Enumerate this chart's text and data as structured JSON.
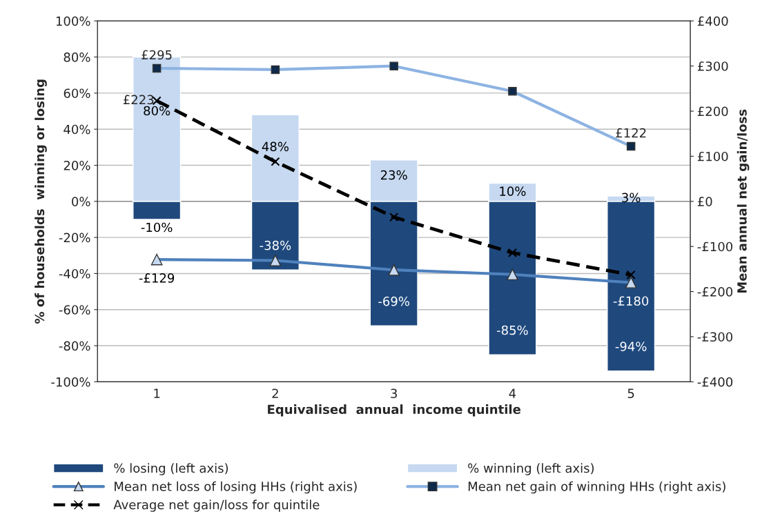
{
  "chart_data": {
    "type": "bar",
    "xlabel": "Equivalised  annual  income quintile",
    "ylabel": "% of households  winning or losing",
    "y2label": "Mean annual net gain/loss",
    "categories": [
      "1",
      "2",
      "3",
      "4",
      "5"
    ],
    "stacked": true,
    "data_labels": true,
    "grid": "y",
    "legend": "bottom",
    "series": [
      {
        "name": "% losing (left axis)",
        "color": "#1f497d",
        "values": [
          -10,
          -38,
          -69,
          -85,
          -94
        ],
        "value_labels": [
          "-10%",
          "-38%",
          "-69%",
          "-85%",
          "-94%"
        ]
      },
      {
        "name": "% winning (left axis)",
        "color": "#c6d9f1",
        "values": [
          80,
          48,
          23,
          10,
          3
        ],
        "value_labels": [
          "80%",
          "48%",
          "23%",
          "10%",
          "3%"
        ]
      },
      {
        "name": "Mean net loss of losing HHs (right axis)",
        "type": "line",
        "axis": "y2",
        "color": "#4f81bd",
        "marker": "triangle",
        "line_style": "solid",
        "values": [
          -129,
          -131,
          -152,
          -162,
          -180
        ],
        "value_labels": [
          "-£129",
          null,
          null,
          null,
          "-£180"
        ]
      },
      {
        "name": "Mean net gain of winning HHs (right axis)",
        "type": "line",
        "axis": "y2",
        "color": "#8db3e2",
        "marker": "square",
        "line_style": "solid",
        "values": [
          295,
          292,
          300,
          244,
          122
        ],
        "value_labels": [
          "£295",
          null,
          null,
          null,
          "£122"
        ]
      },
      {
        "name": "Average net gain/loss for quintile",
        "type": "line",
        "axis": "y2",
        "color": "#000000",
        "marker": "cross",
        "line_style": "dashed",
        "values": [
          223,
          88,
          -35,
          -114,
          -163
        ],
        "value_labels": [
          "£223",
          null,
          null,
          null,
          null
        ]
      }
    ],
    "ylim": [
      -100,
      100
    ],
    "yticks": [
      {
        "value": -100,
        "label": "-100%"
      },
      {
        "value": -80,
        "label": "-80%"
      },
      {
        "value": -60,
        "label": "-60%"
      },
      {
        "value": -40,
        "label": "-40%"
      },
      {
        "value": -20,
        "label": "-20%"
      },
      {
        "value": 0,
        "label": "0%"
      },
      {
        "value": 20,
        "label": "20%"
      },
      {
        "value": 40,
        "label": "40%"
      },
      {
        "value": 60,
        "label": "60%"
      },
      {
        "value": 80,
        "label": "80%"
      },
      {
        "value": 100,
        "label": "100%"
      }
    ],
    "y2lim": [
      -400,
      400
    ],
    "y2ticks": [
      {
        "value": -400,
        "label": "-£400"
      },
      {
        "value": -300,
        "label": "-£300"
      },
      {
        "value": -200,
        "label": "-£200"
      },
      {
        "value": -100,
        "label": "-£100"
      },
      {
        "value": 0,
        "label": "£0"
      },
      {
        "value": 100,
        "label": "£100"
      },
      {
        "value": 200,
        "label": "£200"
      },
      {
        "value": 300,
        "label": "£300"
      },
      {
        "value": 400,
        "label": "£400"
      }
    ]
  }
}
